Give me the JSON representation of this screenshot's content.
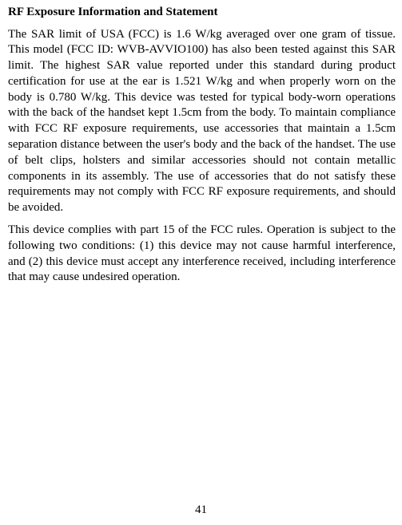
{
  "document": {
    "heading": "RF Exposure Information and Statement",
    "para1": "The SAR limit of USA (FCC) is 1.6 W/kg averaged over one gram of tissue. This model (FCC ID: WVB-AVVIO100) has also been tested against this SAR limit. The highest SAR value reported under this standard during product certification for use at the ear is 1.521 W/kg and when properly worn on the body is 0.780 W/kg. This device was tested for typical body-worn operations with the back of the handset kept 1.5cm from the body. To maintain compliance with FCC RF exposure requirements, use accessories that maintain a 1.5cm separation distance between the user's body and the back of the handset. The use of belt clips, holsters and similar accessories should not contain metallic components in its assembly. The use of accessories that do not satisfy these requirements may not comply with FCC RF exposure requirements, and should be avoided.",
    "para2": "This device complies with part 15 of the FCC rules. Operation is subject to the following two conditions: (1) this device may not cause harmful interference, and (2) this device must accept any interference received, including interference that may cause undesired operation.",
    "page_number": "41",
    "text_color": "#000000",
    "background_color": "#ffffff",
    "body_fontsize": 15,
    "heading_fontsize": 15,
    "font_family": "Times New Roman"
  }
}
